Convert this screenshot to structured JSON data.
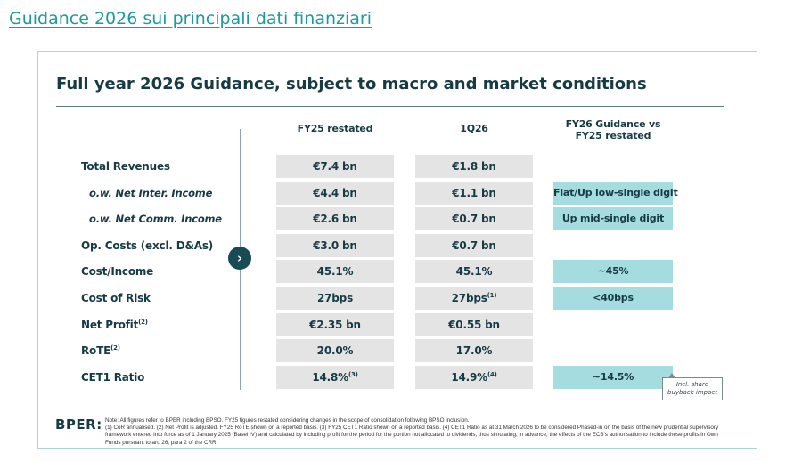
{
  "page_title": "Guidance 2026 sui principali dati finanziari",
  "card_title": "Full year 2026 Guidance, subject to macro and market conditions",
  "arrow_icon": "chevron-right-icon",
  "columns": {
    "c1": "FY25 restated",
    "c2": "1Q26",
    "c3": "FY26 Guidance vs FY25 restated"
  },
  "rows": [
    {
      "label": "Total Revenues",
      "label_sup": "",
      "indent": false,
      "c1": "€7.4 bn",
      "c1_sup": "",
      "c2": "€1.8 bn",
      "c2_sup": "",
      "c3": ""
    },
    {
      "label": "o.w. Net Inter. Income",
      "label_sup": "",
      "indent": true,
      "c1": "€4.4 bn",
      "c1_sup": "",
      "c2": "€1.1 bn",
      "c2_sup": "",
      "c3": "Flat/Up low-single digit"
    },
    {
      "label": "o.w. Net Comm. Income",
      "label_sup": "",
      "indent": true,
      "c1": "€2.6 bn",
      "c1_sup": "",
      "c2": "€0.7 bn",
      "c2_sup": "",
      "c3": "Up mid-single digit"
    },
    {
      "label": "Op. Costs (excl. D&As)",
      "label_sup": "",
      "indent": false,
      "c1": "€3.0 bn",
      "c1_sup": "",
      "c2": "€0.7 bn",
      "c2_sup": "",
      "c3": ""
    },
    {
      "label": "Cost/Income",
      "label_sup": "",
      "indent": false,
      "c1": "45.1%",
      "c1_sup": "",
      "c2": "45.1%",
      "c2_sup": "",
      "c3": "~45%"
    },
    {
      "label": "Cost of Risk",
      "label_sup": "",
      "indent": false,
      "c1": "27bps",
      "c1_sup": "",
      "c2": "27bps",
      "c2_sup": "(1)",
      "c3": "<40bps"
    },
    {
      "label": "Net Profit",
      "label_sup": "(2)",
      "indent": false,
      "c1": "€2.35 bn",
      "c1_sup": "",
      "c2": "€0.55 bn",
      "c2_sup": "",
      "c3": ""
    },
    {
      "label": "RoTE",
      "label_sup": "(2)",
      "indent": false,
      "c1": "20.0%",
      "c1_sup": "",
      "c2": "17.0%",
      "c2_sup": "",
      "c3": ""
    },
    {
      "label": "CET1 Ratio",
      "label_sup": "",
      "indent": false,
      "c1": "14.8%",
      "c1_sup": "(3)",
      "c2": "14.9%",
      "c2_sup": "(4)",
      "c3": "~14.5%"
    }
  ],
  "callout": "Incl. share buyback impact",
  "logo": "BPER:",
  "notes": [
    "Note: All figures refer to BPER including BPSO. FY25 figures restated considering changes in the scope of consolidation following BPSO inclusion.",
    "(1) CoR annualised.   (2) Net Profit is adjusted. FY25 RoTE shown on a reported basis.   (3) FY25 CET1 Ratio shown on a reported basis.   (4) CET1 Ratio as at 31 March 2026 to be considered Phased-in on the basis of the new prudential supervisory framework entered into force as of 1 January 2025 (Basel IV) and calculated by including profit for the period for the portion not allocated to dividends, thus simulating, in advance, the effects of the ECB's authorisation to include these profits in Own Funds pursuant to art. 26, para 2 of the CRR."
  ]
}
